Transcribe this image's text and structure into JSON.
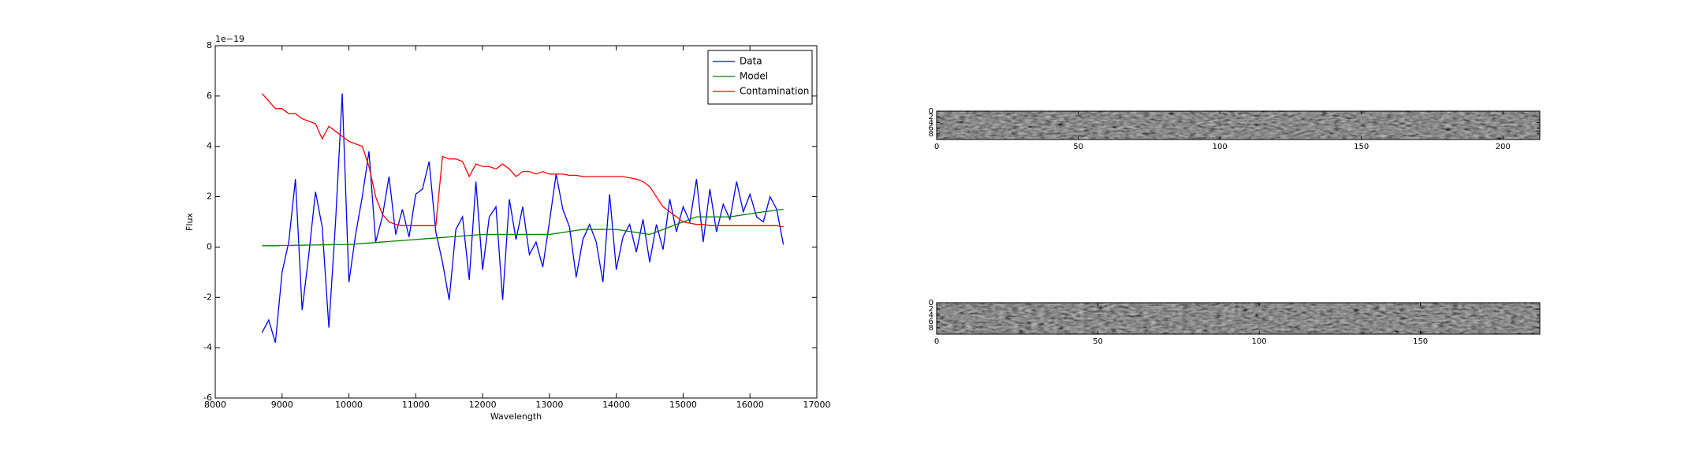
{
  "chart_data": [
    {
      "type": "line",
      "xlabel": "Wavelength",
      "ylabel": "Flux",
      "offset_label": "1e−19",
      "x": [
        8700,
        8800,
        8900,
        9000,
        9100,
        9200,
        9300,
        9400,
        9500,
        9600,
        9700,
        9800,
        9900,
        10000,
        10100,
        10200,
        10300,
        10400,
        10500,
        10600,
        10700,
        10800,
        10900,
        11000,
        11100,
        11200,
        11300,
        11400,
        11500,
        11600,
        11700,
        11800,
        11900,
        12000,
        12100,
        12200,
        12300,
        12400,
        12500,
        12600,
        12700,
        12800,
        12900,
        13000,
        13100,
        13200,
        13300,
        13400,
        13500,
        13600,
        13700,
        13800,
        13900,
        14000,
        14100,
        14200,
        14300,
        14400,
        14500,
        14600,
        14700,
        14800,
        14900,
        15000,
        15100,
        15200,
        15300,
        15400,
        15500,
        15600,
        15700,
        15800,
        15900,
        16000,
        16100,
        16200,
        16300,
        16400,
        16500
      ],
      "series": [
        {
          "name": "Data",
          "color": "#0000ff",
          "values": [
            -3.4,
            -2.9,
            -3.8,
            -1.0,
            0.2,
            2.7,
            -2.5,
            -0.3,
            2.2,
            0.8,
            -3.2,
            1.0,
            6.1,
            -1.4,
            0.5,
            2.0,
            3.8,
            0.2,
            1.2,
            2.8,
            0.5,
            1.5,
            0.4,
            2.1,
            2.3,
            3.4,
            0.6,
            -0.6,
            -2.1,
            0.7,
            1.2,
            -1.3,
            2.6,
            -0.9,
            1.2,
            1.6,
            -2.1,
            1.9,
            0.3,
            1.6,
            -0.3,
            0.2,
            -0.8,
            1.0,
            2.9,
            1.5,
            0.8,
            -1.2,
            0.3,
            0.9,
            0.2,
            -1.4,
            2.1,
            -0.9,
            0.4,
            0.9,
            -0.2,
            1.1,
            -0.6,
            0.9,
            -0.1,
            1.9,
            0.6,
            1.6,
            1.0,
            2.7,
            0.2,
            2.3,
            0.6,
            1.7,
            1.1,
            2.6,
            1.4,
            2.1,
            1.2,
            1.0,
            2.0,
            1.5,
            0.1
          ]
        },
        {
          "name": "Model",
          "color": "#008000",
          "values": [
            0.05,
            0.05,
            0.05,
            0.06,
            0.06,
            0.07,
            0.07,
            0.08,
            0.08,
            0.09,
            0.09,
            0.1,
            0.1,
            0.1,
            0.12,
            0.14,
            0.16,
            0.18,
            0.2,
            0.22,
            0.24,
            0.26,
            0.28,
            0.3,
            0.32,
            0.34,
            0.36,
            0.38,
            0.4,
            0.42,
            0.44,
            0.46,
            0.48,
            0.5,
            0.5,
            0.5,
            0.5,
            0.5,
            0.5,
            0.5,
            0.5,
            0.5,
            0.5,
            0.5,
            0.54,
            0.58,
            0.62,
            0.66,
            0.7,
            0.7,
            0.7,
            0.7,
            0.7,
            0.7,
            0.66,
            0.62,
            0.58,
            0.54,
            0.5,
            0.6,
            0.7,
            0.8,
            0.9,
            1.0,
            1.1,
            1.2,
            1.2,
            1.2,
            1.2,
            1.2,
            1.2,
            1.24,
            1.28,
            1.32,
            1.36,
            1.4,
            1.43,
            1.47,
            1.5
          ]
        },
        {
          "name": "Contamination",
          "color": "#ff0000",
          "values": [
            6.1,
            5.8,
            5.5,
            5.5,
            5.3,
            5.3,
            5.1,
            5.0,
            4.9,
            4.3,
            4.8,
            4.6,
            4.4,
            4.2,
            4.1,
            4.0,
            3.2,
            2.0,
            1.3,
            1.0,
            0.9,
            0.85,
            0.85,
            0.85,
            0.85,
            0.85,
            0.85,
            3.6,
            3.5,
            3.5,
            3.4,
            2.8,
            3.3,
            3.2,
            3.2,
            3.1,
            3.3,
            3.1,
            2.8,
            3.0,
            3.0,
            2.9,
            3.0,
            2.9,
            2.9,
            2.9,
            2.85,
            2.85,
            2.8,
            2.8,
            2.8,
            2.8,
            2.8,
            2.8,
            2.8,
            2.75,
            2.7,
            2.6,
            2.4,
            2.0,
            1.6,
            1.4,
            1.2,
            1.0,
            0.95,
            0.9,
            0.9,
            0.85,
            0.85,
            0.85,
            0.85,
            0.85,
            0.85,
            0.85,
            0.85,
            0.85,
            0.85,
            0.85,
            0.8
          ]
        }
      ],
      "xlim": [
        8000,
        17000
      ],
      "xticks": [
        8000,
        9000,
        10000,
        11000,
        12000,
        13000,
        14000,
        15000,
        16000,
        17000
      ],
      "ylim": [
        -6,
        8
      ],
      "yticks": [
        -6,
        -4,
        -2,
        0,
        2,
        4,
        6,
        8
      ],
      "legend": "upper right"
    },
    {
      "type": "image",
      "xlim": [
        0,
        213
      ],
      "xticks": [
        0,
        50,
        100,
        150,
        200
      ],
      "ylim": [
        10,
        0
      ],
      "yticks": [
        0,
        2,
        4,
        6,
        8
      ]
    },
    {
      "type": "image",
      "xlim": [
        0,
        187
      ],
      "xticks": [
        0,
        50,
        100,
        150
      ],
      "ylim": [
        10,
        0
      ],
      "yticks": [
        0,
        2,
        4,
        6,
        8
      ]
    }
  ]
}
